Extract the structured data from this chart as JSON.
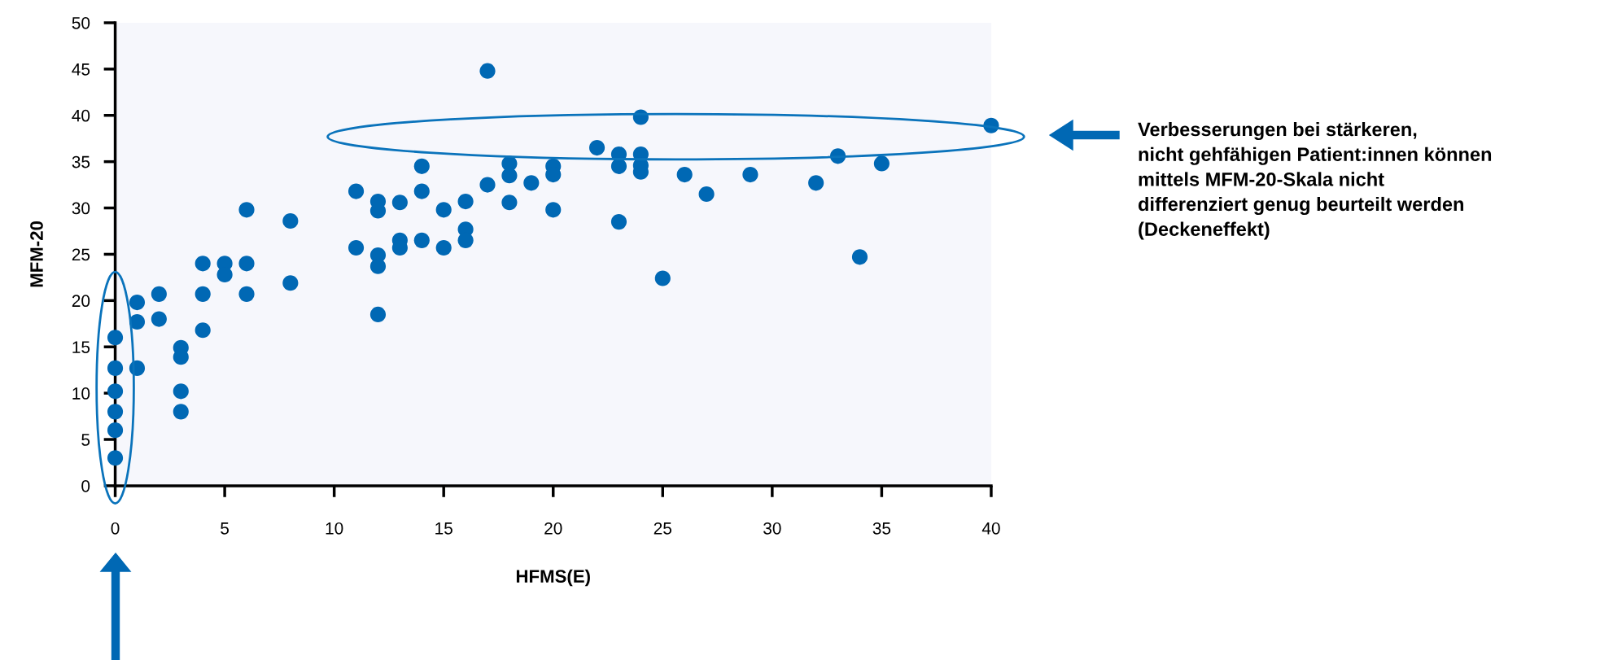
{
  "chart_data": {
    "type": "scatter",
    "xlabel": "HFMS(E)",
    "ylabel": "MFM-20",
    "x": [
      0,
      0,
      0,
      0,
      0,
      0,
      1,
      1,
      1,
      2,
      2,
      3,
      3,
      3,
      3,
      4,
      4,
      4,
      5,
      5,
      6,
      6,
      6,
      8,
      8,
      11,
      11,
      12,
      12,
      12,
      12,
      12,
      13,
      13,
      13,
      14,
      14,
      14,
      15,
      15,
      16,
      16,
      16,
      17,
      17,
      18,
      18,
      18,
      19,
      20,
      20,
      20,
      22,
      23,
      23,
      23,
      24,
      24,
      24,
      24,
      25,
      26,
      27,
      29,
      32,
      33,
      34,
      35,
      40
    ],
    "series": [
      {
        "color": "#0068b4",
        "values": [
          16,
          12.7,
          10.2,
          8,
          6,
          3,
          19.8,
          17.7,
          12.7,
          20.7,
          18,
          14.9,
          13.9,
          10.2,
          8,
          24,
          20.7,
          16.8,
          24,
          22.8,
          29.8,
          24,
          20.7,
          28.6,
          21.9,
          31.8,
          25.7,
          30.7,
          29.7,
          24.9,
          23.7,
          18.5,
          30.6,
          26.5,
          25.7,
          34.5,
          31.8,
          26.5,
          29.8,
          25.7,
          30.7,
          27.7,
          26.5,
          44.8,
          32.5,
          34.8,
          33.5,
          30.6,
          32.7,
          34.5,
          33.6,
          29.8,
          36.5,
          35.8,
          34.5,
          28.5,
          39.8,
          35.8,
          34.6,
          33.9,
          22.4,
          33.6,
          31.5,
          33.6,
          32.7,
          35.6,
          24.7,
          34.8,
          38.9
        ]
      }
    ],
    "xlim": [
      0,
      40
    ],
    "ylim": [
      0,
      50
    ],
    "xticks": [
      0,
      5,
      10,
      15,
      20,
      25,
      30,
      35,
      40
    ],
    "yticks": [
      0,
      5,
      10,
      15,
      20,
      25,
      30,
      35,
      40,
      45,
      50
    ],
    "marker": "circle",
    "grid": false,
    "legend": false,
    "annotations": [
      "Verbesserungen bei stärkeren,\nnicht gehfähigen Patient:innen können\nmittels MFM-20-Skala nicht\ndifferenziert genug beurteilt werden\n(Deckeneffekt)"
    ]
  }
}
